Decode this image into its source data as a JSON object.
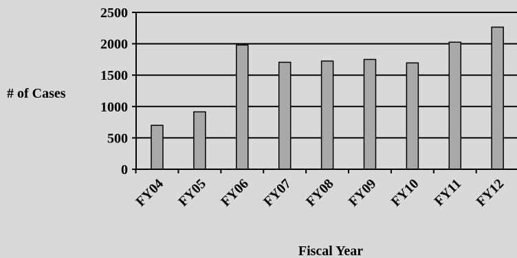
{
  "chart_data": {
    "type": "bar",
    "title": "",
    "xlabel": "Fiscal Year",
    "ylabel": "# of Cases",
    "categories": [
      "FY04",
      "FY05",
      "FY06",
      "FY07",
      "FY08",
      "FY09",
      "FY10",
      "FY11",
      "FY12"
    ],
    "values": [
      700,
      915,
      1980,
      1705,
      1725,
      1750,
      1695,
      2025,
      2265
    ],
    "ylim": [
      0,
      2500
    ],
    "yticks": [
      "0",
      "500",
      "1000",
      "1500",
      "2000",
      "2500"
    ],
    "grid": true,
    "legend": "none",
    "colors": {
      "background": "#d9d9d9",
      "bar_fill": "#a9a9a9",
      "bar_stroke": "#000000",
      "grid": "#000000"
    }
  }
}
